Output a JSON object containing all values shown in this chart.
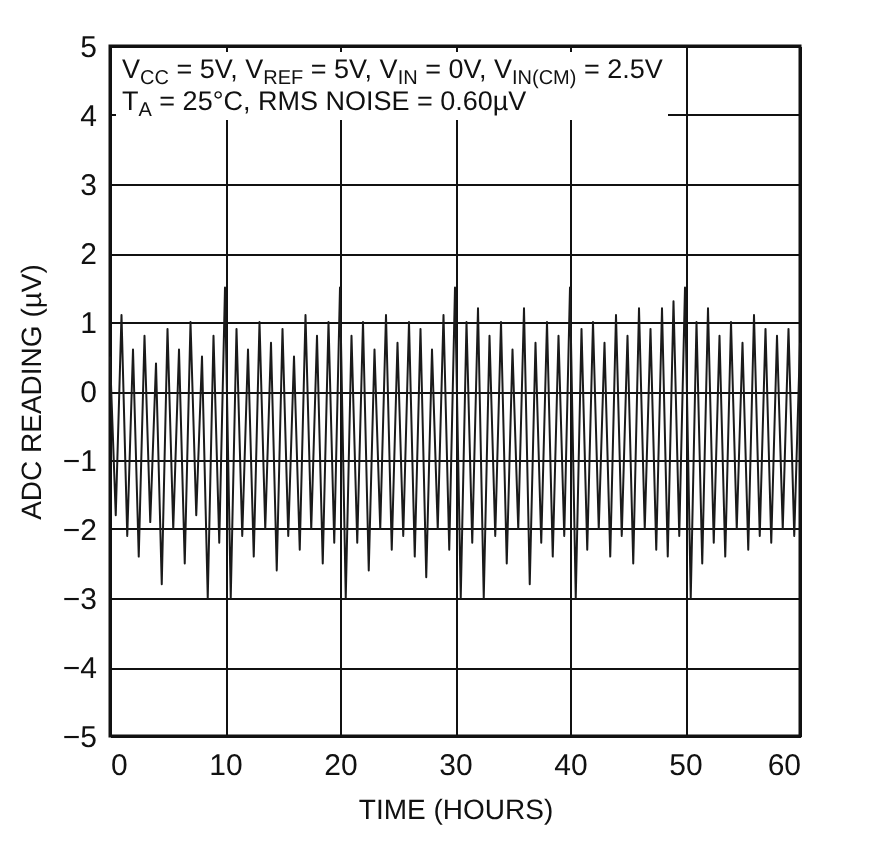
{
  "chart_data": {
    "type": "line",
    "xlabel": "TIME (HOURS)",
    "ylabel": "ADC READING (µV)",
    "annotations": [
      "V$_{CC}$ = 5V, V$_{REF}$ = 5V, V$_{IN}$ = 0V, V$_{IN(CM)}$ = 2.5V",
      "T$_{A}$ = 25°C, RMS NOISE = 0.60µV"
    ],
    "xlim": [
      0,
      60
    ],
    "xticks": [
      0,
      10,
      20,
      30,
      40,
      50,
      60
    ],
    "ylim": [
      -5,
      5
    ],
    "yticks": [
      -5,
      -4,
      -3,
      -2,
      -1,
      0,
      1,
      2,
      3,
      4,
      5
    ],
    "grid": true,
    "marker": "none",
    "line_style": "solid",
    "x": [
      0,
      0.5,
      1,
      1.5,
      2,
      2.5,
      3,
      3.5,
      4,
      4.5,
      5,
      5.5,
      6,
      6.5,
      7,
      7.5,
      8,
      8.5,
      9,
      9.5,
      10,
      10.5,
      11,
      11.5,
      12,
      12.5,
      13,
      13.5,
      14,
      14.5,
      15,
      15.5,
      16,
      16.5,
      17,
      17.5,
      18,
      18.5,
      19,
      19.5,
      20,
      20.5,
      21,
      21.5,
      22,
      22.5,
      23,
      23.5,
      24,
      24.5,
      25,
      25.5,
      26,
      26.5,
      27,
      27.5,
      28,
      28.5,
      29,
      29.5,
      30,
      30.5,
      31,
      31.5,
      32,
      32.5,
      33,
      33.5,
      34,
      34.5,
      35,
      35.5,
      36,
      36.5,
      37,
      37.5,
      38,
      38.5,
      39,
      39.5,
      40,
      40.5,
      41,
      41.5,
      42,
      42.5,
      43,
      43.5,
      44,
      44.5,
      45,
      45.5,
      46,
      46.5,
      47,
      47.5,
      48,
      48.5,
      49,
      49.5,
      50,
      50.5,
      51,
      51.5,
      52,
      52.5,
      53,
      53.5,
      54,
      54.5,
      55,
      55.5,
      56,
      56.5,
      57,
      57.5,
      58,
      58.5,
      59,
      59.5,
      60
    ],
    "series": [
      {
        "color": "#1a1a1a",
        "values": [
          0.5,
          -1.8,
          1.1,
          -2.1,
          0.6,
          -2.4,
          0.8,
          -1.9,
          0.4,
          -2.8,
          0.9,
          -2.0,
          0.6,
          -2.5,
          1.0,
          -1.8,
          0.5,
          -3.0,
          0.8,
          -2.2,
          1.5,
          -3.0,
          0.9,
          -2.1,
          0.6,
          -2.4,
          1.0,
          -2.0,
          0.7,
          -2.6,
          0.9,
          -2.1,
          0.5,
          -2.3,
          1.1,
          -2.0,
          0.8,
          -2.5,
          1.0,
          -2.2,
          1.5,
          -3.0,
          0.8,
          -2.2,
          1.0,
          -2.6,
          0.6,
          -2.0,
          1.1,
          -2.3,
          0.7,
          -2.1,
          1.0,
          -2.4,
          0.9,
          -2.7,
          0.6,
          -2.0,
          1.1,
          -2.3,
          1.5,
          -3.0,
          1.0,
          -2.2,
          1.2,
          -3.0,
          0.8,
          -2.1,
          1.0,
          -2.5,
          0.6,
          -2.0,
          1.2,
          -2.8,
          0.7,
          -2.2,
          1.0,
          -2.4,
          0.8,
          -2.1,
          1.5,
          -3.0,
          0.9,
          -2.3,
          1.0,
          -2.0,
          0.7,
          -2.4,
          1.1,
          -2.1,
          0.8,
          -2.5,
          1.2,
          -2.0,
          0.9,
          -2.3,
          1.2,
          -2.4,
          1.3,
          -2.1,
          1.5,
          -3.0,
          1.0,
          -2.5,
          1.2,
          -2.2,
          0.8,
          -2.4,
          1.0,
          -2.0,
          0.7,
          -2.3,
          1.1,
          -2.1,
          0.9,
          -2.2,
          0.8,
          -2.0,
          0.9,
          -2.1,
          0.7
        ]
      }
    ]
  }
}
